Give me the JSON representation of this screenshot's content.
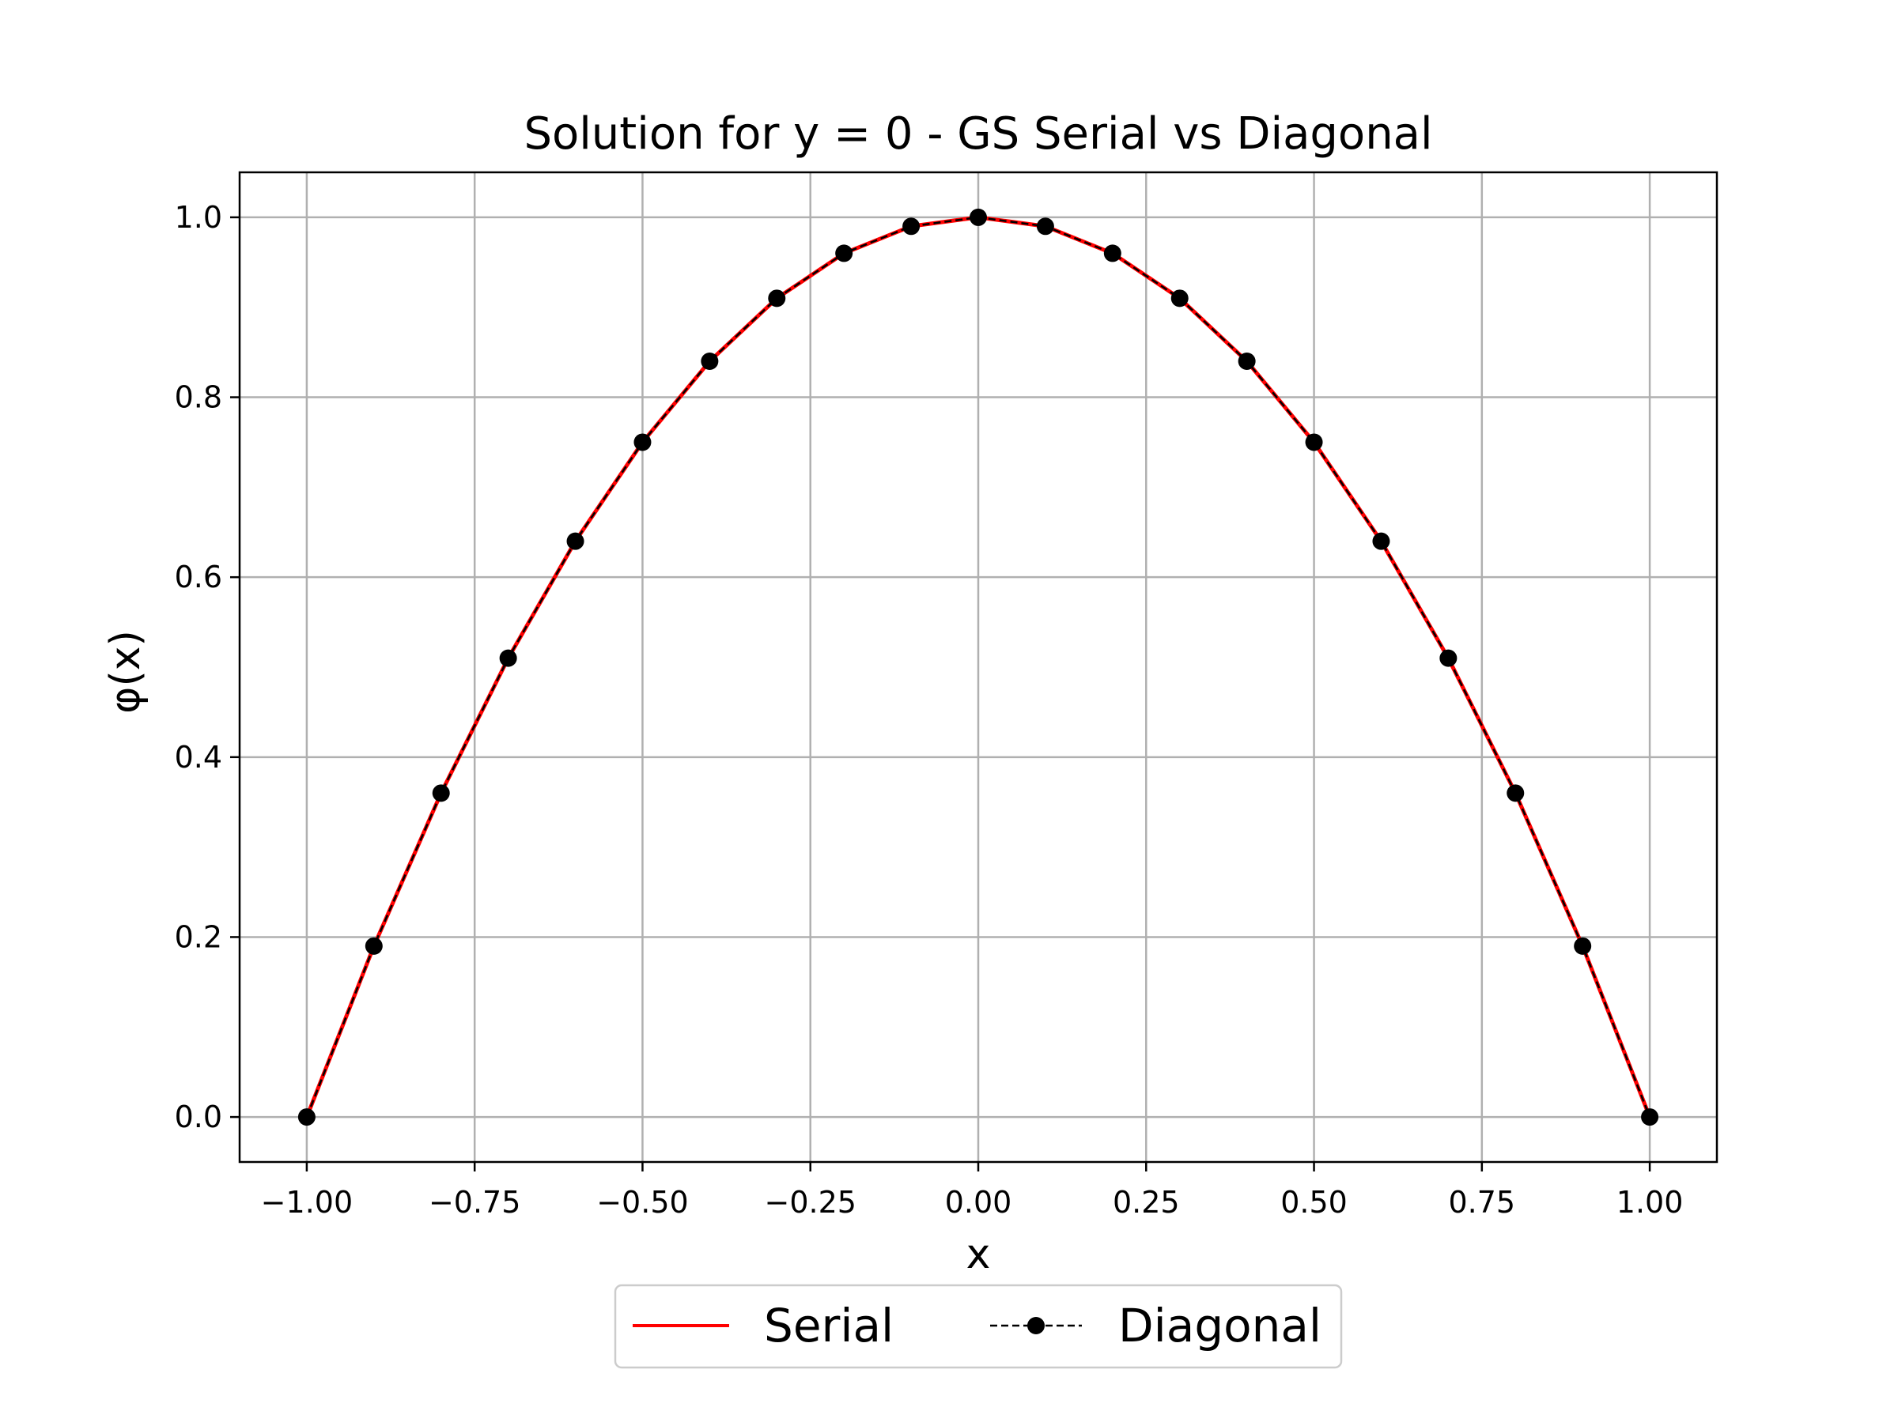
{
  "chart_data": {
    "type": "line",
    "title": "Solution for y = 0 - GS Serial vs Diagonal",
    "xlabel": "x",
    "ylabel": "φ(x)",
    "xlim": [
      -1.1,
      1.1
    ],
    "ylim": [
      -0.05,
      1.05
    ],
    "xticks": [
      -1.0,
      -0.75,
      -0.5,
      -0.25,
      0.0,
      0.25,
      0.5,
      0.75,
      1.0
    ],
    "xtick_labels": [
      "−1.00",
      "−0.75",
      "−0.50",
      "−0.25",
      "0.00",
      "0.25",
      "0.50",
      "0.75",
      "1.00"
    ],
    "yticks": [
      0.0,
      0.2,
      0.4,
      0.6,
      0.8,
      1.0
    ],
    "ytick_labels": [
      "0.0",
      "0.2",
      "0.4",
      "0.6",
      "0.8",
      "1.0"
    ],
    "grid": true,
    "legend_position": "below",
    "x": [
      -1.0,
      -0.9,
      -0.8,
      -0.7,
      -0.6,
      -0.5,
      -0.4,
      -0.3,
      -0.2,
      -0.1,
      0.0,
      0.1,
      0.2,
      0.3,
      0.4,
      0.5,
      0.6,
      0.7,
      0.8,
      0.9,
      1.0
    ],
    "series": [
      {
        "name": "Serial",
        "color": "#ff0000",
        "style": "solid",
        "values": [
          0.0,
          0.19,
          0.36,
          0.51,
          0.64,
          0.75,
          0.84,
          0.91,
          0.96,
          0.99,
          1.0,
          0.99,
          0.96,
          0.91,
          0.84,
          0.75,
          0.64,
          0.51,
          0.36,
          0.19,
          0.0
        ]
      },
      {
        "name": "Diagonal",
        "color": "#000000",
        "style": "dashed",
        "marker": "circle",
        "values": [
          0.0,
          0.19,
          0.36,
          0.51,
          0.64,
          0.75,
          0.84,
          0.91,
          0.96,
          0.99,
          1.0,
          0.99,
          0.96,
          0.91,
          0.84,
          0.75,
          0.64,
          0.51,
          0.36,
          0.19,
          0.0
        ]
      }
    ]
  }
}
